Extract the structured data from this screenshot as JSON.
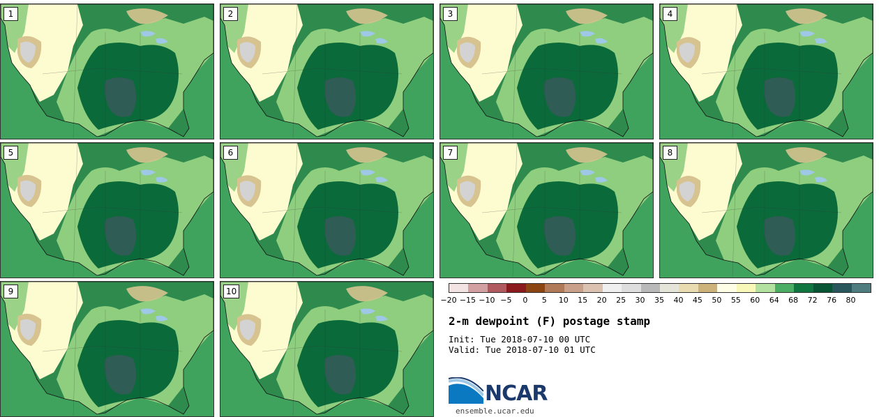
{
  "stamps": [
    {
      "label": "1"
    },
    {
      "label": "2"
    },
    {
      "label": "3"
    },
    {
      "label": "4"
    },
    {
      "label": "5"
    },
    {
      "label": "6"
    },
    {
      "label": "7"
    },
    {
      "label": "8"
    },
    {
      "label": "9"
    },
    {
      "label": "10"
    }
  ],
  "colorbar": {
    "colors": [
      "#f4e3e3",
      "#d2a0a0",
      "#b05a5f",
      "#8b1a1e",
      "#8b4513",
      "#b07a58",
      "#c9a08a",
      "#dcc2b0",
      "#f0f0f0",
      "#dedede",
      "#b9b9b9",
      "#e4e4d8",
      "#e8dcb0",
      "#cdb27a",
      "#fefee6",
      "#f8f8b8",
      "#b2e1a0",
      "#4cad65",
      "#0f7640",
      "#075534",
      "#28565c",
      "#4f7c7f"
    ],
    "ticks": [
      "−20",
      "−15",
      "−10",
      "−5",
      "0",
      "5",
      "10",
      "15",
      "20",
      "25",
      "30",
      "35",
      "40",
      "45",
      "50",
      "55",
      "60",
      "64",
      "68",
      "72",
      "76",
      "80"
    ]
  },
  "title": "2-m dewpoint (F) postage stamp",
  "init_line": "Init: Tue 2018-07-10 00 UTC",
  "valid_line": "Valid: Tue 2018-07-10 01 UTC",
  "logo_text": "NCAR",
  "site": "ensemble.ucar.edu",
  "colors": {
    "ocean": "#3fa35e",
    "dry": "#fdfbd0",
    "very_dry": "#d7c38f",
    "mid": "#8fce7e",
    "moist": "#0b6a3a",
    "very_moist": "#2f5c55",
    "grey": "#d3d3d3"
  }
}
